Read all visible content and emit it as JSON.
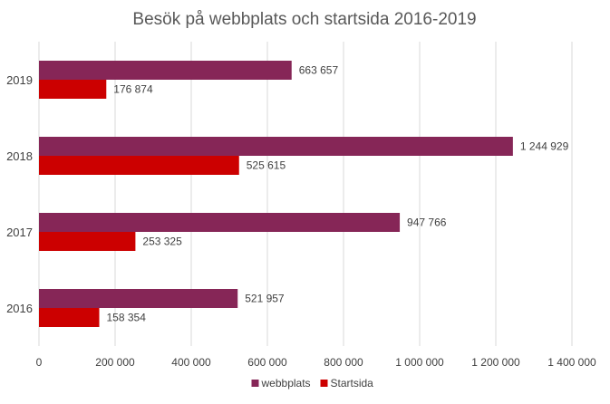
{
  "chart_data": {
    "type": "bar",
    "orientation": "horizontal",
    "title": "Besök på webbplats och startsida 2016-2019",
    "categories": [
      "2016",
      "2017",
      "2018",
      "2019"
    ],
    "series": [
      {
        "name": "webbplats",
        "values": [
          521957,
          947766,
          1244929,
          663657
        ],
        "color": "#862657"
      },
      {
        "name": "Startsida",
        "values": [
          158354,
          253325,
          525615,
          176874
        ],
        "color": "#cc0000"
      }
    ],
    "data_labels": {
      "webbplats": [
        "521 957",
        "947 766",
        "1 244 929",
        "663 657"
      ],
      "Startsida": [
        "158 354",
        "253 325",
        "525 615",
        "176 874"
      ]
    },
    "xlim": [
      0,
      1400000
    ],
    "xticks": [
      0,
      200000,
      400000,
      600000,
      800000,
      1000000,
      1200000,
      1400000
    ],
    "xtick_labels": [
      "0",
      "200 000",
      "400 000",
      "600 000",
      "800 000",
      "1 000 000",
      "1 200 000",
      "1 400 000"
    ],
    "grid": true,
    "legend_position": "bottom"
  }
}
